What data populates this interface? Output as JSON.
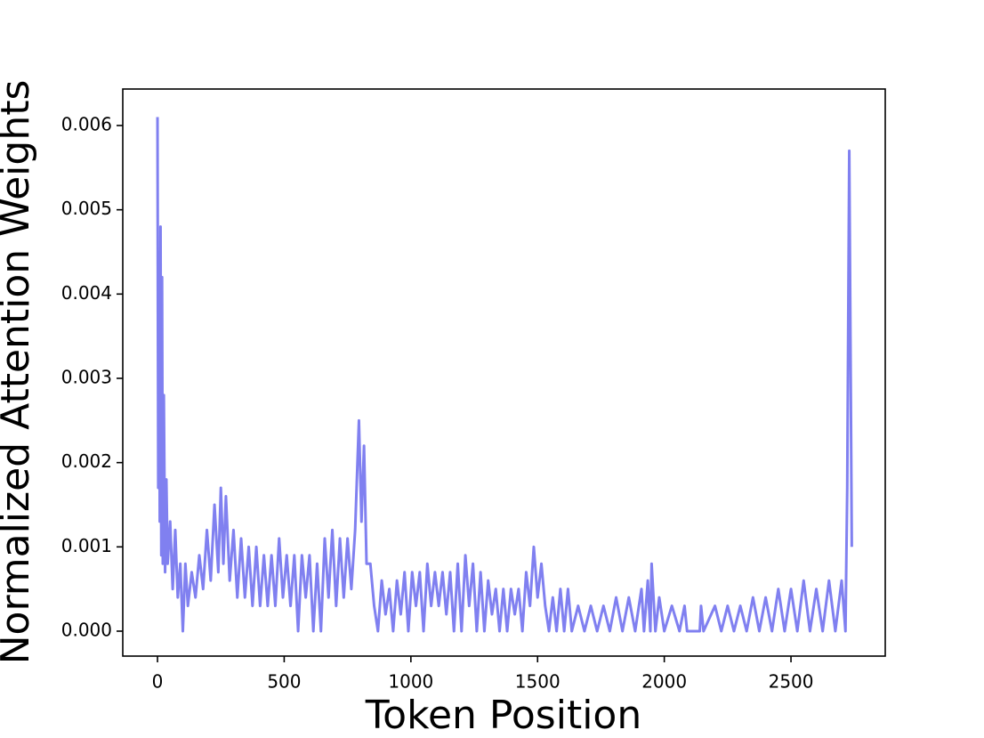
{
  "chart_data": {
    "type": "line",
    "x_label": "Token Position",
    "y_label": "Normalized Attention Weights",
    "color": "#8080f0",
    "xlim": [
      -137,
      2872
    ],
    "ylim": [
      -0.000296,
      0.006433
    ],
    "xticks": [
      0,
      500,
      1000,
      1500,
      2000,
      2500
    ],
    "yticks": [
      {
        "value": 0,
        "label": "0.000"
      },
      {
        "value": 0.001,
        "label": "0.001"
      },
      {
        "value": 0.002,
        "label": "0.002"
      },
      {
        "value": 0.003,
        "label": "0.003"
      },
      {
        "value": 0.004,
        "label": "0.004"
      },
      {
        "value": 0.005,
        "label": "0.005"
      },
      {
        "value": 0.006,
        "label": "0.006"
      }
    ],
    "x": [
      0,
      3,
      6,
      9,
      12,
      15,
      18,
      21,
      25,
      30,
      35,
      40,
      50,
      60,
      70,
      80,
      90,
      100,
      110,
      120,
      135,
      150,
      165,
      180,
      195,
      210,
      225,
      240,
      250,
      260,
      270,
      285,
      300,
      315,
      330,
      345,
      360,
      375,
      390,
      405,
      420,
      435,
      450,
      465,
      480,
      495,
      510,
      525,
      540,
      555,
      570,
      585,
      600,
      615,
      630,
      645,
      660,
      675,
      690,
      705,
      720,
      735,
      750,
      765,
      780,
      795,
      805,
      815,
      825,
      840,
      855,
      870,
      885,
      900,
      915,
      930,
      945,
      960,
      975,
      990,
      1005,
      1020,
      1035,
      1050,
      1065,
      1080,
      1095,
      1110,
      1125,
      1140,
      1155,
      1170,
      1185,
      1200,
      1215,
      1230,
      1245,
      1260,
      1275,
      1290,
      1305,
      1320,
      1335,
      1350,
      1365,
      1380,
      1395,
      1410,
      1425,
      1440,
      1455,
      1470,
      1485,
      1500,
      1515,
      1530,
      1545,
      1560,
      1575,
      1590,
      1605,
      1620,
      1635,
      1660,
      1685,
      1710,
      1735,
      1760,
      1785,
      1810,
      1835,
      1860,
      1885,
      1910,
      1920,
      1935,
      1945,
      1950,
      1965,
      1980,
      2000,
      2030,
      2060,
      2080,
      2090,
      2140,
      2145,
      2155,
      2200,
      2225,
      2250,
      2275,
      2300,
      2325,
      2350,
      2375,
      2400,
      2425,
      2450,
      2475,
      2500,
      2525,
      2550,
      2575,
      2600,
      2625,
      2650,
      2675,
      2700,
      2715,
      2722,
      2730,
      2740
    ],
    "values": [
      0.0061,
      0.0017,
      0.0045,
      0.0013,
      0.0048,
      0.0009,
      0.0042,
      0.0008,
      0.0028,
      0.0007,
      0.0018,
      0.0008,
      0.0013,
      0.0005,
      0.0012,
      0.0004,
      0.0008,
      0,
      0.0008,
      0.0003,
      0.0007,
      0.0004,
      0.0009,
      0.0005,
      0.0012,
      0.0006,
      0.0015,
      0.0007,
      0.0017,
      0.0008,
      0.0016,
      0.0006,
      0.0012,
      0.0004,
      0.0011,
      0.0004,
      0.001,
      0.0003,
      0.001,
      0.0003,
      0.0009,
      0.0003,
      0.0009,
      0.0003,
      0.0011,
      0.0004,
      0.0009,
      0.0003,
      0.0009,
      0,
      0.0009,
      0.0004,
      0.0009,
      0,
      0.0008,
      0,
      0.0011,
      0.0004,
      0.0012,
      0.0003,
      0.0011,
      0.0004,
      0.0011,
      0.0005,
      0.0012,
      0.0025,
      0.0013,
      0.0022,
      0.0008,
      0.0008,
      0.0003,
      0,
      0.0006,
      0.0002,
      0.0005,
      0,
      0.0006,
      0.0002,
      0.0007,
      0,
      0.0007,
      0.0003,
      0.0007,
      0,
      0.0008,
      0.0003,
      0.0007,
      0.0003,
      0.0007,
      0.0002,
      0.0007,
      0,
      0.0008,
      0,
      0.0009,
      0.0003,
      0.0008,
      0,
      0.0007,
      0,
      0.0006,
      0.0002,
      0.0005,
      0,
      0.0005,
      0,
      0.0005,
      0.0002,
      0.0005,
      0,
      0.0007,
      0.0003,
      0.001,
      0.0004,
      0.0008,
      0.0003,
      0,
      0.0004,
      0,
      0.0005,
      0,
      0.0005,
      0,
      0.0003,
      0,
      0.0003,
      0,
      0.0003,
      0,
      0.0004,
      0,
      0.0004,
      0,
      0.0005,
      0,
      0.0006,
      0,
      0.0008,
      0,
      0.0004,
      0,
      0.0003,
      0,
      0.0003,
      0,
      0,
      0.0003,
      0,
      0.0003,
      0,
      0.0003,
      0,
      0.0003,
      0,
      0.0004,
      0,
      0.0004,
      0,
      0.0005,
      0,
      0.0005,
      0,
      0.0006,
      0,
      0.0005,
      0,
      0.0006,
      0,
      0.0006,
      0,
      0.0017,
      0.0057,
      0.001
    ]
  }
}
